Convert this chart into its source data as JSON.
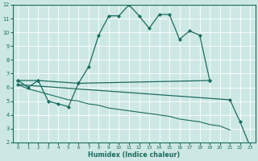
{
  "xlabel": "Humidex (Indice chaleur)",
  "bg_color": "#cde8e4",
  "line_color": "#1a6b60",
  "grid_color": "#ffffff",
  "xlim": [
    -0.5,
    23.5
  ],
  "ylim": [
    2,
    12
  ],
  "yticks": [
    2,
    3,
    4,
    5,
    6,
    7,
    8,
    9,
    10,
    11,
    12
  ],
  "xticks": [
    0,
    1,
    2,
    3,
    4,
    5,
    6,
    7,
    8,
    9,
    10,
    11,
    12,
    13,
    14,
    15,
    16,
    17,
    18,
    19,
    20,
    21,
    22,
    23
  ],
  "series": [
    {
      "x": [
        0,
        1,
        2,
        3,
        4,
        5,
        6,
        7,
        8,
        9,
        10,
        11,
        12,
        13,
        14,
        15,
        16,
        17,
        18,
        19
      ],
      "y": [
        6.5,
        6.0,
        6.5,
        5.0,
        4.8,
        4.6,
        6.3,
        7.5,
        9.8,
        11.2,
        11.2,
        12.0,
        11.2,
        10.3,
        11.3,
        11.3,
        9.5,
        10.1,
        9.8,
        6.5
      ],
      "has_markers": true
    },
    {
      "x": [
        0,
        2,
        6,
        19
      ],
      "y": [
        6.5,
        6.5,
        6.3,
        6.5
      ],
      "has_markers": true
    },
    {
      "x": [
        0,
        1,
        2,
        3,
        4,
        5,
        6,
        7,
        8,
        9,
        10,
        11,
        12,
        13,
        14,
        15,
        16,
        17,
        18,
        19,
        20,
        21,
        22,
        23
      ],
      "y": [
        6.2,
        5.9,
        5.7,
        5.5,
        5.3,
        5.1,
        5.0,
        4.8,
        4.7,
        4.5,
        4.4,
        4.3,
        4.2,
        4.1,
        4.0,
        3.9,
        3.7,
        3.6,
        3.5,
        3.3,
        3.2,
        2.9,
        null,
        null
      ],
      "has_markers": false
    },
    {
      "x": [
        0,
        21,
        22,
        23
      ],
      "y": [
        6.2,
        5.1,
        3.5,
        1.7
      ],
      "has_markers": true
    }
  ]
}
